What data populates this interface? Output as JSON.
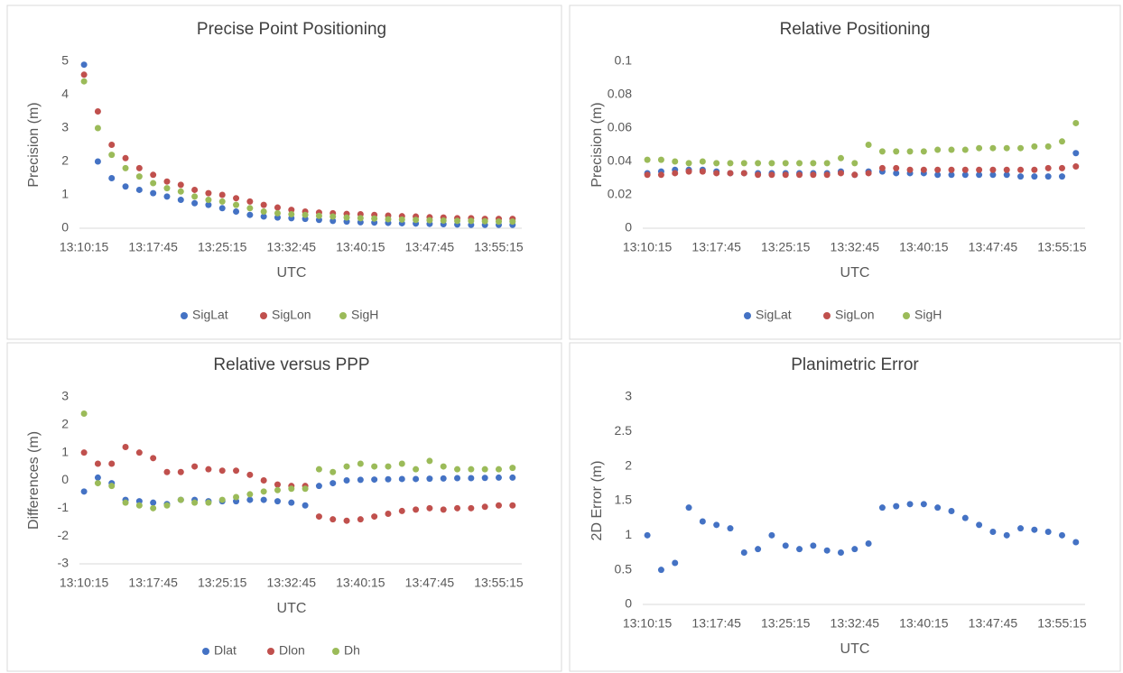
{
  "chart_data": [
    {
      "type": "scatter",
      "title": "Precise Point Positioning",
      "x_label": "UTC",
      "y_label": "Precision (m)",
      "x": [
        "13:10:15",
        "13:11:45",
        "13:13:15",
        "13:14:45",
        "13:16:15",
        "13:17:45",
        "13:19:15",
        "13:20:45",
        "13:22:15",
        "13:23:45",
        "13:25:15",
        "13:26:45",
        "13:28:15",
        "13:29:45",
        "13:31:15",
        "13:32:45",
        "13:34:15",
        "13:35:45",
        "13:37:15",
        "13:38:45",
        "13:40:15",
        "13:41:45",
        "13:43:15",
        "13:44:45",
        "13:46:15",
        "13:47:45",
        "13:49:15",
        "13:50:45",
        "13:52:15",
        "13:53:45",
        "13:55:15",
        "13:56:45"
      ],
      "xlim": [
        "13:09:45",
        "13:57:45"
      ],
      "xticks": [
        "13:10:15",
        "13:17:45",
        "13:25:15",
        "13:32:45",
        "13:40:15",
        "13:47:45",
        "13:55:15"
      ],
      "ylim": [
        0,
        5
      ],
      "yticks": [
        0,
        1,
        2,
        3,
        4,
        5
      ],
      "legend": "bottom",
      "series": [
        {
          "name": "SigLat",
          "color": "#4472c4",
          "values": [
            4.9,
            2.0,
            1.5,
            1.25,
            1.15,
            1.05,
            0.95,
            0.85,
            0.75,
            0.7,
            0.6,
            0.5,
            0.4,
            0.35,
            0.32,
            0.3,
            0.28,
            0.25,
            0.22,
            0.2,
            0.18,
            0.17,
            0.16,
            0.15,
            0.14,
            0.13,
            0.12,
            0.11,
            0.1,
            0.1,
            0.1,
            0.1
          ]
        },
        {
          "name": "SigLon",
          "color": "#c0504d",
          "values": [
            4.6,
            3.5,
            2.5,
            2.1,
            1.8,
            1.6,
            1.4,
            1.3,
            1.15,
            1.05,
            1.0,
            0.9,
            0.8,
            0.7,
            0.62,
            0.55,
            0.5,
            0.47,
            0.45,
            0.43,
            0.42,
            0.4,
            0.38,
            0.36,
            0.35,
            0.33,
            0.32,
            0.3,
            0.3,
            0.28,
            0.28,
            0.28
          ]
        },
        {
          "name": "SigH",
          "color": "#9bbb59",
          "values": [
            4.4,
            3.0,
            2.2,
            1.8,
            1.55,
            1.35,
            1.2,
            1.1,
            0.95,
            0.85,
            0.8,
            0.7,
            0.6,
            0.5,
            0.45,
            0.42,
            0.4,
            0.37,
            0.35,
            0.32,
            0.3,
            0.29,
            0.27,
            0.26,
            0.25,
            0.24,
            0.23,
            0.22,
            0.22,
            0.21,
            0.2,
            0.2
          ]
        }
      ]
    },
    {
      "type": "scatter",
      "title": "Relative Positioning",
      "x_label": "UTC",
      "y_label": "Precision (m)",
      "x": [
        "13:10:15",
        "13:11:45",
        "13:13:15",
        "13:14:45",
        "13:16:15",
        "13:17:45",
        "13:19:15",
        "13:20:45",
        "13:22:15",
        "13:23:45",
        "13:25:15",
        "13:26:45",
        "13:28:15",
        "13:29:45",
        "13:31:15",
        "13:32:45",
        "13:34:15",
        "13:35:45",
        "13:37:15",
        "13:38:45",
        "13:40:15",
        "13:41:45",
        "13:43:15",
        "13:44:45",
        "13:46:15",
        "13:47:45",
        "13:49:15",
        "13:50:45",
        "13:52:15",
        "13:53:45",
        "13:55:15",
        "13:56:45"
      ],
      "xlim": [
        "13:09:45",
        "13:57:45"
      ],
      "xticks": [
        "13:10:15",
        "13:17:45",
        "13:25:15",
        "13:32:45",
        "13:40:15",
        "13:47:45",
        "13:55:15"
      ],
      "ylim": [
        0,
        0.1
      ],
      "yticks": [
        0,
        0.02,
        0.04,
        0.06,
        0.08,
        0.1
      ],
      "legend": "bottom",
      "series": [
        {
          "name": "SigLat",
          "color": "#4472c4",
          "values": [
            0.033,
            0.034,
            0.035,
            0.035,
            0.035,
            0.034,
            0.033,
            0.033,
            0.033,
            0.033,
            0.033,
            0.033,
            0.033,
            0.033,
            0.034,
            0.032,
            0.034,
            0.034,
            0.033,
            0.033,
            0.033,
            0.032,
            0.032,
            0.032,
            0.032,
            0.032,
            0.032,
            0.031,
            0.031,
            0.031,
            0.031,
            0.045
          ]
        },
        {
          "name": "SigLon",
          "color": "#c0504d",
          "values": [
            0.032,
            0.032,
            0.033,
            0.034,
            0.034,
            0.033,
            0.033,
            0.033,
            0.032,
            0.032,
            0.032,
            0.032,
            0.032,
            0.032,
            0.033,
            0.032,
            0.033,
            0.036,
            0.036,
            0.035,
            0.035,
            0.035,
            0.035,
            0.035,
            0.035,
            0.035,
            0.035,
            0.035,
            0.035,
            0.036,
            0.036,
            0.037
          ]
        },
        {
          "name": "SigH",
          "color": "#9bbb59",
          "values": [
            0.041,
            0.041,
            0.04,
            0.039,
            0.04,
            0.039,
            0.039,
            0.039,
            0.039,
            0.039,
            0.039,
            0.039,
            0.039,
            0.039,
            0.042,
            0.039,
            0.05,
            0.046,
            0.046,
            0.046,
            0.046,
            0.047,
            0.047,
            0.047,
            0.048,
            0.048,
            0.048,
            0.048,
            0.049,
            0.049,
            0.052,
            0.063
          ]
        }
      ]
    },
    {
      "type": "scatter",
      "title": "Relative versus PPP",
      "x_label": "UTC",
      "y_label": "Differences (m)",
      "x": [
        "13:10:15",
        "13:11:45",
        "13:13:15",
        "13:14:45",
        "13:16:15",
        "13:17:45",
        "13:19:15",
        "13:20:45",
        "13:22:15",
        "13:23:45",
        "13:25:15",
        "13:26:45",
        "13:28:15",
        "13:29:45",
        "13:31:15",
        "13:32:45",
        "13:34:15",
        "13:35:45",
        "13:37:15",
        "13:38:45",
        "13:40:15",
        "13:41:45",
        "13:43:15",
        "13:44:45",
        "13:46:15",
        "13:47:45",
        "13:49:15",
        "13:50:45",
        "13:52:15",
        "13:53:45",
        "13:55:15",
        "13:56:45"
      ],
      "xlim": [
        "13:09:45",
        "13:57:45"
      ],
      "xticks": [
        "13:10:15",
        "13:17:45",
        "13:25:15",
        "13:32:45",
        "13:40:15",
        "13:47:45",
        "13:55:15"
      ],
      "ylim": [
        -3,
        3
      ],
      "yticks": [
        -3,
        -2,
        -1,
        0,
        1,
        2,
        3
      ],
      "legend": "bottom",
      "series": [
        {
          "name": "Dlat",
          "color": "#4472c4",
          "values": [
            -0.4,
            0.1,
            -0.1,
            -0.7,
            -0.75,
            -0.8,
            -0.85,
            -0.7,
            -0.7,
            -0.75,
            -0.75,
            -0.75,
            -0.7,
            -0.7,
            -0.75,
            -0.8,
            -0.9,
            -0.2,
            -0.1,
            0.0,
            0.02,
            0.03,
            0.04,
            0.05,
            0.05,
            0.06,
            0.07,
            0.08,
            0.08,
            0.09,
            0.1,
            0.1
          ]
        },
        {
          "name": "Dlon",
          "color": "#c0504d",
          "values": [
            1.0,
            0.6,
            0.6,
            1.2,
            1.0,
            0.8,
            0.3,
            0.3,
            0.5,
            0.4,
            0.35,
            0.35,
            0.2,
            0.0,
            -0.15,
            -0.2,
            -0.2,
            -1.3,
            -1.4,
            -1.45,
            -1.4,
            -1.3,
            -1.2,
            -1.1,
            -1.05,
            -1.0,
            -1.05,
            -1.0,
            -1.0,
            -0.95,
            -0.9,
            -0.9
          ]
        },
        {
          "name": "Dh",
          "color": "#9bbb59",
          "values": [
            2.4,
            -0.1,
            -0.2,
            -0.8,
            -0.9,
            -1.0,
            -0.9,
            -0.7,
            -0.8,
            -0.8,
            -0.7,
            -0.6,
            -0.5,
            -0.4,
            -0.35,
            -0.3,
            -0.3,
            0.4,
            0.3,
            0.5,
            0.6,
            0.5,
            0.5,
            0.6,
            0.4,
            0.7,
            0.5,
            0.4,
            0.4,
            0.4,
            0.4,
            0.45
          ]
        }
      ]
    },
    {
      "type": "scatter",
      "title": "Planimetric Error",
      "x_label": "UTC",
      "y_label": "2D Error (m)",
      "x": [
        "13:10:15",
        "13:11:45",
        "13:13:15",
        "13:14:45",
        "13:16:15",
        "13:17:45",
        "13:19:15",
        "13:20:45",
        "13:22:15",
        "13:23:45",
        "13:25:15",
        "13:26:45",
        "13:28:15",
        "13:29:45",
        "13:31:15",
        "13:32:45",
        "13:34:15",
        "13:35:45",
        "13:37:15",
        "13:38:45",
        "13:40:15",
        "13:41:45",
        "13:43:15",
        "13:44:45",
        "13:46:15",
        "13:47:45",
        "13:49:15",
        "13:50:45",
        "13:52:15",
        "13:53:45",
        "13:55:15",
        "13:56:45"
      ],
      "xlim": [
        "13:09:45",
        "13:57:45"
      ],
      "xticks": [
        "13:10:15",
        "13:17:45",
        "13:25:15",
        "13:32:45",
        "13:40:15",
        "13:47:45",
        "13:55:15"
      ],
      "ylim": [
        0,
        3
      ],
      "yticks": [
        0,
        0.5,
        1,
        1.5,
        2,
        2.5,
        3
      ],
      "series": [
        {
          "color": "#4472c4",
          "values": [
            1.0,
            0.5,
            0.6,
            1.4,
            1.2,
            1.15,
            1.1,
            0.75,
            0.8,
            1.0,
            0.85,
            0.8,
            0.85,
            0.78,
            0.75,
            0.8,
            0.88,
            1.4,
            1.42,
            1.45,
            1.45,
            1.4,
            1.35,
            1.25,
            1.15,
            1.05,
            1.0,
            1.1,
            1.08,
            1.05,
            1.0,
            0.9
          ]
        }
      ]
    }
  ]
}
